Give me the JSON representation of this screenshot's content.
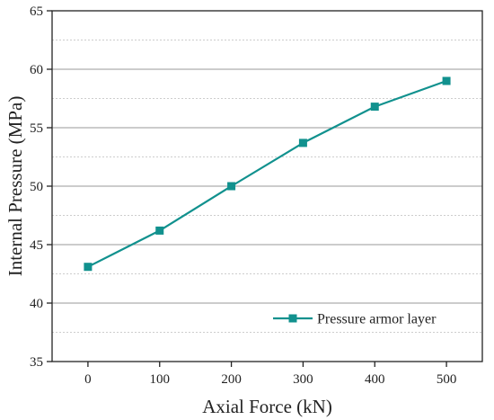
{
  "chart_data": {
    "type": "line",
    "title": "",
    "xlabel": "Axial Force (kN)",
    "ylabel": "Internal Pressure (MPa)",
    "xlim": [
      -50,
      550
    ],
    "ylim": [
      35,
      65
    ],
    "x_ticks": [
      0,
      100,
      200,
      300,
      400,
      500
    ],
    "y_ticks": [
      35,
      40,
      45,
      50,
      55,
      60,
      65
    ],
    "x_tick_labels": [
      "0",
      "100",
      "200",
      "300",
      "400",
      "500"
    ],
    "y_tick_labels": [
      "35",
      "40",
      "45",
      "50",
      "55",
      "60",
      "65"
    ],
    "y_minor_grid": [
      37.5,
      42.5,
      47.5,
      52.5,
      57.5,
      62.5
    ],
    "grid": true,
    "legend_position": "bottom-right",
    "series": [
      {
        "name": "Pressure armor layer",
        "color": "#11918E",
        "marker": "square",
        "x": [
          0,
          100,
          200,
          300,
          400,
          500
        ],
        "y": [
          43.1,
          46.2,
          50.0,
          53.7,
          56.8,
          59.0
        ]
      }
    ]
  }
}
